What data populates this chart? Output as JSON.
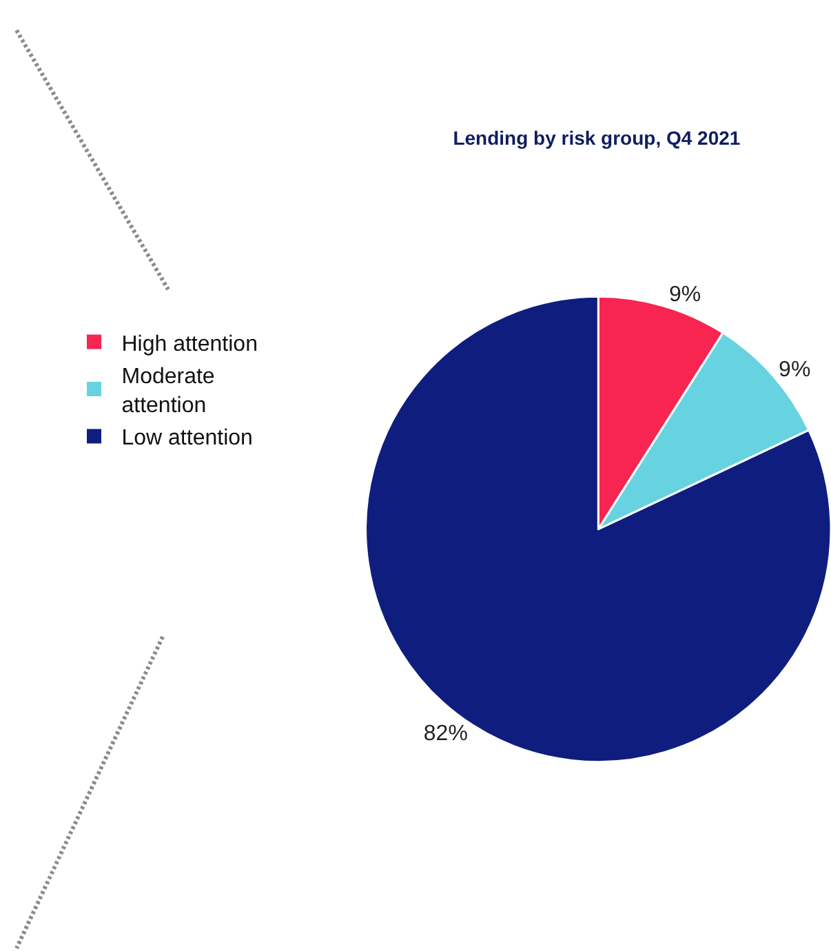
{
  "chart_data": {
    "type": "pie",
    "title": "Lending by risk group, Q4 2021",
    "categories": [
      "High attention",
      "Moderate attention",
      "Low attention"
    ],
    "values": [
      9,
      9,
      82
    ],
    "colors": [
      "#f7254f",
      "#68d3e0",
      "#0f1e7e"
    ],
    "value_labels": [
      "9%",
      "9%",
      "82%"
    ],
    "legend": "left"
  }
}
